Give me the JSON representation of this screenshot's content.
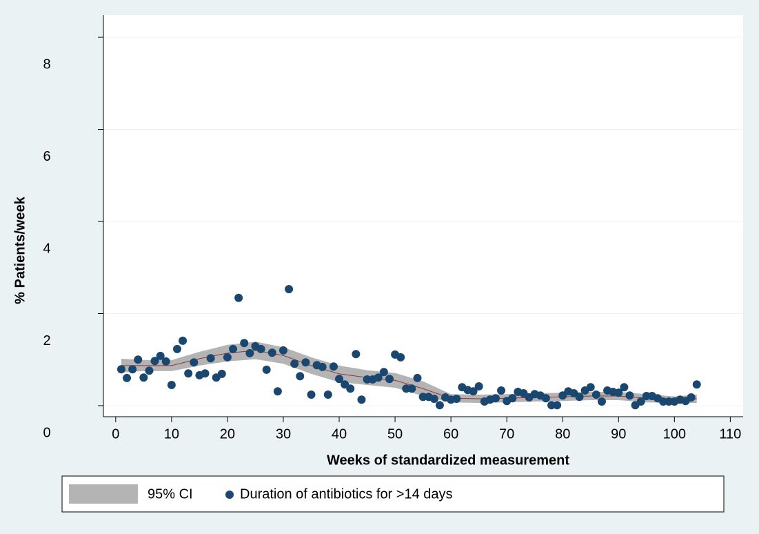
{
  "chart_data": {
    "type": "scatter",
    "xlabel": "Weeks of standardized measurement",
    "ylabel": "% Patients/week",
    "xlim": [
      -2.2,
      112.3
    ],
    "ylim": [
      -0.24,
      8.48
    ],
    "xticks": [
      0,
      10,
      20,
      30,
      40,
      50,
      60,
      70,
      80,
      90,
      100,
      110
    ],
    "yticks": [
      0,
      2,
      4,
      6,
      8
    ],
    "grid": true,
    "series": [
      {
        "name": "Duration of antibiotics for >14 days",
        "color": "#1a476f",
        "x": [
          1,
          2,
          3,
          4,
          5,
          6,
          7,
          8,
          9,
          10,
          11,
          12,
          13,
          14,
          15,
          16,
          17,
          18,
          19,
          20,
          21,
          22,
          23,
          24,
          25,
          26,
          27,
          28,
          29,
          30,
          31,
          32,
          33,
          34,
          35,
          36,
          37,
          38,
          39,
          40,
          41,
          42,
          43,
          44,
          45,
          46,
          47,
          48,
          49,
          50,
          51,
          52,
          53,
          54,
          55,
          56,
          57,
          58,
          59,
          60,
          61,
          62,
          63,
          64,
          65,
          66,
          67,
          68,
          69,
          70,
          71,
          72,
          73,
          74,
          75,
          76,
          77,
          78,
          79,
          80,
          81,
          82,
          83,
          84,
          85,
          86,
          87,
          88,
          89,
          90,
          91,
          92,
          93,
          94,
          95,
          96,
          97,
          98,
          99,
          100,
          101,
          102,
          103,
          104
        ],
        "values": [
          0.79,
          0.6,
          0.79,
          1.0,
          0.61,
          0.76,
          0.97,
          1.08,
          0.96,
          0.45,
          1.23,
          1.41,
          0.7,
          0.94,
          0.66,
          0.7,
          1.03,
          0.61,
          0.69,
          1.05,
          1.23,
          2.34,
          1.36,
          1.14,
          1.29,
          1.23,
          0.78,
          1.15,
          0.31,
          1.2,
          2.53,
          0.91,
          0.64,
          0.94,
          0.24,
          0.88,
          0.84,
          0.24,
          0.85,
          0.58,
          0.46,
          0.37,
          1.12,
          0.13,
          0.57,
          0.57,
          0.61,
          0.73,
          0.58,
          1.11,
          1.05,
          0.37,
          0.37,
          0.6,
          0.19,
          0.19,
          0.15,
          0.01,
          0.18,
          0.13,
          0.15,
          0.4,
          0.34,
          0.31,
          0.42,
          0.09,
          0.13,
          0.16,
          0.33,
          0.1,
          0.16,
          0.3,
          0.27,
          0.18,
          0.25,
          0.22,
          0.16,
          0.01,
          0.01,
          0.22,
          0.31,
          0.27,
          0.19,
          0.33,
          0.4,
          0.24,
          0.09,
          0.33,
          0.3,
          0.28,
          0.4,
          0.22,
          0.01,
          0.09,
          0.21,
          0.21,
          0.16,
          0.09,
          0.09,
          0.09,
          0.13,
          0.1,
          0.18,
          0.46
        ]
      }
    ],
    "band": {
      "name": "95% CI",
      "color": "#b4b4b4",
      "fit_color": "#90353b",
      "x": [
        1,
        5,
        10,
        15,
        20,
        25,
        30,
        35,
        40,
        45,
        50,
        55,
        60,
        65,
        70,
        75,
        80,
        85,
        90,
        95,
        100,
        104
      ],
      "fit": [
        0.87,
        0.87,
        0.87,
        1.02,
        1.14,
        1.2,
        1.09,
        0.87,
        0.69,
        0.61,
        0.55,
        0.37,
        0.16,
        0.15,
        0.16,
        0.18,
        0.19,
        0.21,
        0.21,
        0.16,
        0.13,
        0.15
      ],
      "lower": [
        0.72,
        0.75,
        0.75,
        0.87,
        0.96,
        1.01,
        0.91,
        0.69,
        0.51,
        0.45,
        0.39,
        0.21,
        0.07,
        0.06,
        0.07,
        0.09,
        0.1,
        0.12,
        0.12,
        0.07,
        0.06,
        0.06
      ],
      "upper": [
        1.02,
        0.99,
        0.99,
        1.17,
        1.32,
        1.39,
        1.27,
        1.05,
        0.87,
        0.77,
        0.71,
        0.53,
        0.25,
        0.24,
        0.25,
        0.27,
        0.28,
        0.3,
        0.3,
        0.25,
        0.2,
        0.24
      ]
    }
  }
}
